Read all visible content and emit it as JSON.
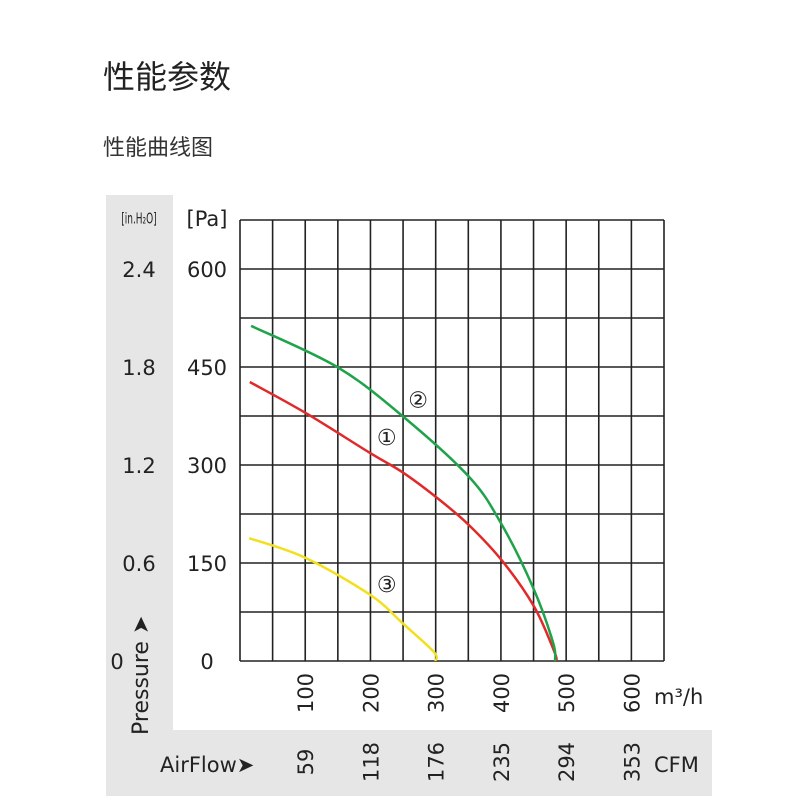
{
  "page": {
    "title": "性能参数",
    "subtitle": "性能曲线图"
  },
  "chart_data": {
    "type": "line",
    "title": "",
    "xlabel": "AirFlow",
    "ylabel": "Pressure",
    "x_unit": "m³/h",
    "x_unit_alt": "CFM",
    "y_unit": "[Pa]",
    "y_unit_alt": "[in.H₂O]",
    "xlim": [
      0,
      650
    ],
    "ylim": [
      0,
      675
    ],
    "grid": true,
    "x_ticks": [
      "100",
      "200",
      "300",
      "400",
      "500",
      "600"
    ],
    "x_ticks_alt": [
      "59",
      "118",
      "176",
      "235",
      "294",
      "353"
    ],
    "y_ticks": [
      "0",
      "150",
      "300",
      "450",
      "600"
    ],
    "y_ticks_alt": [
      "0",
      "0.6",
      "1.2",
      "1.8",
      "2.4"
    ],
    "series": [
      {
        "name": "①",
        "color": "#e02a2a",
        "points": [
          [
            15,
            427
          ],
          [
            100,
            380
          ],
          [
            200,
            318
          ],
          [
            249,
            289
          ],
          [
            303,
            249
          ],
          [
            351,
            208
          ],
          [
            403,
            152
          ],
          [
            451,
            83
          ],
          [
            482,
            14
          ],
          [
            485,
            0
          ]
        ]
      },
      {
        "name": "②",
        "color": "#1fa34a",
        "points": [
          [
            17,
            513
          ],
          [
            149,
            450
          ],
          [
            249,
            375
          ],
          [
            351,
            282
          ],
          [
            400,
            211
          ],
          [
            449,
            113
          ],
          [
            480,
            28
          ],
          [
            483,
            0
          ]
        ]
      },
      {
        "name": "③",
        "color": "#f2e01e",
        "points": [
          [
            14,
            188
          ],
          [
            100,
            158
          ],
          [
            200,
            101
          ],
          [
            249,
            58
          ],
          [
            297,
            14
          ],
          [
            300,
            0
          ]
        ]
      }
    ],
    "labels": [
      {
        "text": "①",
        "x": 225,
        "y": 343
      },
      {
        "text": "②",
        "x": 273,
        "y": 400
      },
      {
        "text": "③",
        "x": 225,
        "y": 118
      }
    ]
  }
}
